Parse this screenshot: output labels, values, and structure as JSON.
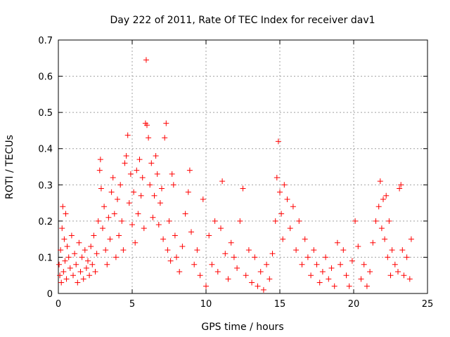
{
  "chart_data": {
    "type": "scatter",
    "title": "Day 222 of 2011, Rate Of TEC Index for receiver dav1",
    "xlabel": "GPS time / hours",
    "ylabel": "ROTI / TECUs",
    "xlim": [
      0,
      25
    ],
    "ylim": [
      0,
      0.7
    ],
    "xticks": [
      "0",
      "5",
      "10",
      "15",
      "20",
      "25"
    ],
    "yticks": [
      "0",
      "0.1",
      "0.2",
      "0.3",
      "0.4",
      "0.5",
      "0.6",
      "0.7"
    ],
    "grid": true,
    "marker": "plus",
    "color": "#ff0000",
    "series": [
      {
        "points": [
          [
            0.05,
            0.08
          ],
          [
            0.1,
            0.05
          ],
          [
            0.15,
            0.12
          ],
          [
            0.2,
            0.03
          ],
          [
            0.25,
            0.18
          ],
          [
            0.3,
            0.24
          ],
          [
            0.35,
            0.06
          ],
          [
            0.4,
            0.15
          ],
          [
            0.45,
            0.09
          ],
          [
            0.5,
            0.22
          ],
          [
            0.55,
            0.04
          ],
          [
            0.6,
            0.13
          ],
          [
            0.7,
            0.1
          ],
          [
            0.8,
            0.07
          ],
          [
            0.9,
            0.16
          ],
          [
            1.0,
            0.05
          ],
          [
            1.1,
            0.11
          ],
          [
            1.2,
            0.08
          ],
          [
            1.3,
            0.03
          ],
          [
            1.4,
            0.14
          ],
          [
            1.5,
            0.06
          ],
          [
            1.6,
            0.1
          ],
          [
            1.7,
            0.04
          ],
          [
            1.8,
            0.12
          ],
          [
            1.9,
            0.07
          ],
          [
            2.0,
            0.09
          ],
          [
            2.1,
            0.05
          ],
          [
            2.2,
            0.13
          ],
          [
            2.3,
            0.08
          ],
          [
            2.4,
            0.16
          ],
          [
            2.5,
            0.06
          ],
          [
            2.6,
            0.11
          ],
          [
            2.7,
            0.2
          ],
          [
            2.8,
            0.34
          ],
          [
            2.85,
            0.37
          ],
          [
            2.9,
            0.29
          ],
          [
            3.0,
            0.18
          ],
          [
            3.1,
            0.24
          ],
          [
            3.2,
            0.12
          ],
          [
            3.3,
            0.08
          ],
          [
            3.4,
            0.21
          ],
          [
            3.5,
            0.15
          ],
          [
            3.6,
            0.28
          ],
          [
            3.7,
            0.32
          ],
          [
            3.8,
            0.22
          ],
          [
            3.9,
            0.1
          ],
          [
            4.0,
            0.26
          ],
          [
            4.1,
            0.16
          ],
          [
            4.2,
            0.3
          ],
          [
            4.3,
            0.2
          ],
          [
            4.4,
            0.12
          ],
          [
            4.5,
            0.36
          ],
          [
            4.6,
            0.38
          ],
          [
            4.7,
            0.437
          ],
          [
            4.8,
            0.25
          ],
          [
            4.9,
            0.33
          ],
          [
            5.0,
            0.19
          ],
          [
            5.1,
            0.28
          ],
          [
            5.2,
            0.14
          ],
          [
            5.3,
            0.34
          ],
          [
            5.4,
            0.22
          ],
          [
            5.5,
            0.37
          ],
          [
            5.6,
            0.27
          ],
          [
            5.7,
            0.32
          ],
          [
            5.8,
            0.18
          ],
          [
            5.9,
            0.47
          ],
          [
            5.95,
            0.645
          ],
          [
            6.0,
            0.465
          ],
          [
            6.1,
            0.43
          ],
          [
            6.2,
            0.3
          ],
          [
            6.3,
            0.36
          ],
          [
            6.4,
            0.21
          ],
          [
            6.5,
            0.27
          ],
          [
            6.6,
            0.38
          ],
          [
            6.7,
            0.33
          ],
          [
            6.8,
            0.19
          ],
          [
            6.9,
            0.25
          ],
          [
            7.0,
            0.29
          ],
          [
            7.1,
            0.15
          ],
          [
            7.2,
            0.43
          ],
          [
            7.3,
            0.47
          ],
          [
            7.4,
            0.12
          ],
          [
            7.5,
            0.2
          ],
          [
            7.6,
            0.09
          ],
          [
            7.7,
            0.33
          ],
          [
            7.8,
            0.3
          ],
          [
            7.9,
            0.16
          ],
          [
            8.0,
            0.1
          ],
          [
            8.2,
            0.06
          ],
          [
            8.4,
            0.13
          ],
          [
            8.6,
            0.22
          ],
          [
            8.8,
            0.28
          ],
          [
            8.9,
            0.34
          ],
          [
            9.0,
            0.17
          ],
          [
            9.2,
            0.08
          ],
          [
            9.4,
            0.12
          ],
          [
            9.6,
            0.05
          ],
          [
            9.8,
            0.26
          ],
          [
            10.0,
            0.02
          ],
          [
            10.2,
            0.16
          ],
          [
            10.4,
            0.08
          ],
          [
            10.6,
            0.2
          ],
          [
            10.8,
            0.06
          ],
          [
            11.0,
            0.18
          ],
          [
            11.1,
            0.31
          ],
          [
            11.3,
            0.11
          ],
          [
            11.5,
            0.04
          ],
          [
            11.7,
            0.14
          ],
          [
            11.9,
            0.1
          ],
          [
            12.1,
            0.07
          ],
          [
            12.3,
            0.2
          ],
          [
            12.5,
            0.29
          ],
          [
            12.7,
            0.05
          ],
          [
            12.9,
            0.12
          ],
          [
            13.1,
            0.03
          ],
          [
            13.3,
            0.1
          ],
          [
            13.5,
            0.02
          ],
          [
            13.7,
            0.06
          ],
          [
            13.9,
            0.01
          ],
          [
            14.1,
            0.08
          ],
          [
            14.3,
            0.04
          ],
          [
            14.5,
            0.11
          ],
          [
            14.7,
            0.2
          ],
          [
            14.8,
            0.32
          ],
          [
            14.9,
            0.42
          ],
          [
            15.0,
            0.28
          ],
          [
            15.1,
            0.22
          ],
          [
            15.2,
            0.15
          ],
          [
            15.3,
            0.3
          ],
          [
            15.5,
            0.26
          ],
          [
            15.7,
            0.18
          ],
          [
            15.9,
            0.24
          ],
          [
            16.1,
            0.12
          ],
          [
            16.3,
            0.2
          ],
          [
            16.5,
            0.08
          ],
          [
            16.7,
            0.15
          ],
          [
            16.9,
            0.1
          ],
          [
            17.1,
            0.05
          ],
          [
            17.3,
            0.12
          ],
          [
            17.5,
            0.08
          ],
          [
            17.7,
            0.03
          ],
          [
            17.9,
            0.06
          ],
          [
            18.1,
            0.1
          ],
          [
            18.3,
            0.04
          ],
          [
            18.5,
            0.07
          ],
          [
            18.7,
            0.02
          ],
          [
            18.9,
            0.14
          ],
          [
            19.1,
            0.08
          ],
          [
            19.3,
            0.12
          ],
          [
            19.5,
            0.05
          ],
          [
            19.7,
            0.02
          ],
          [
            19.9,
            0.09
          ],
          [
            20.1,
            0.2
          ],
          [
            20.3,
            0.13
          ],
          [
            20.5,
            0.04
          ],
          [
            20.7,
            0.08
          ],
          [
            20.9,
            0.02
          ],
          [
            21.1,
            0.06
          ],
          [
            21.3,
            0.14
          ],
          [
            21.5,
            0.2
          ],
          [
            21.7,
            0.24
          ],
          [
            21.8,
            0.31
          ],
          [
            21.9,
            0.18
          ],
          [
            22.0,
            0.26
          ],
          [
            22.1,
            0.15
          ],
          [
            22.2,
            0.27
          ],
          [
            22.3,
            0.1
          ],
          [
            22.4,
            0.2
          ],
          [
            22.5,
            0.05
          ],
          [
            22.6,
            0.12
          ],
          [
            22.8,
            0.08
          ],
          [
            23.0,
            0.06
          ],
          [
            23.1,
            0.29
          ],
          [
            23.2,
            0.3
          ],
          [
            23.3,
            0.12
          ],
          [
            23.4,
            0.05
          ],
          [
            23.6,
            0.1
          ],
          [
            23.8,
            0.04
          ],
          [
            23.9,
            0.15
          ]
        ]
      }
    ]
  }
}
